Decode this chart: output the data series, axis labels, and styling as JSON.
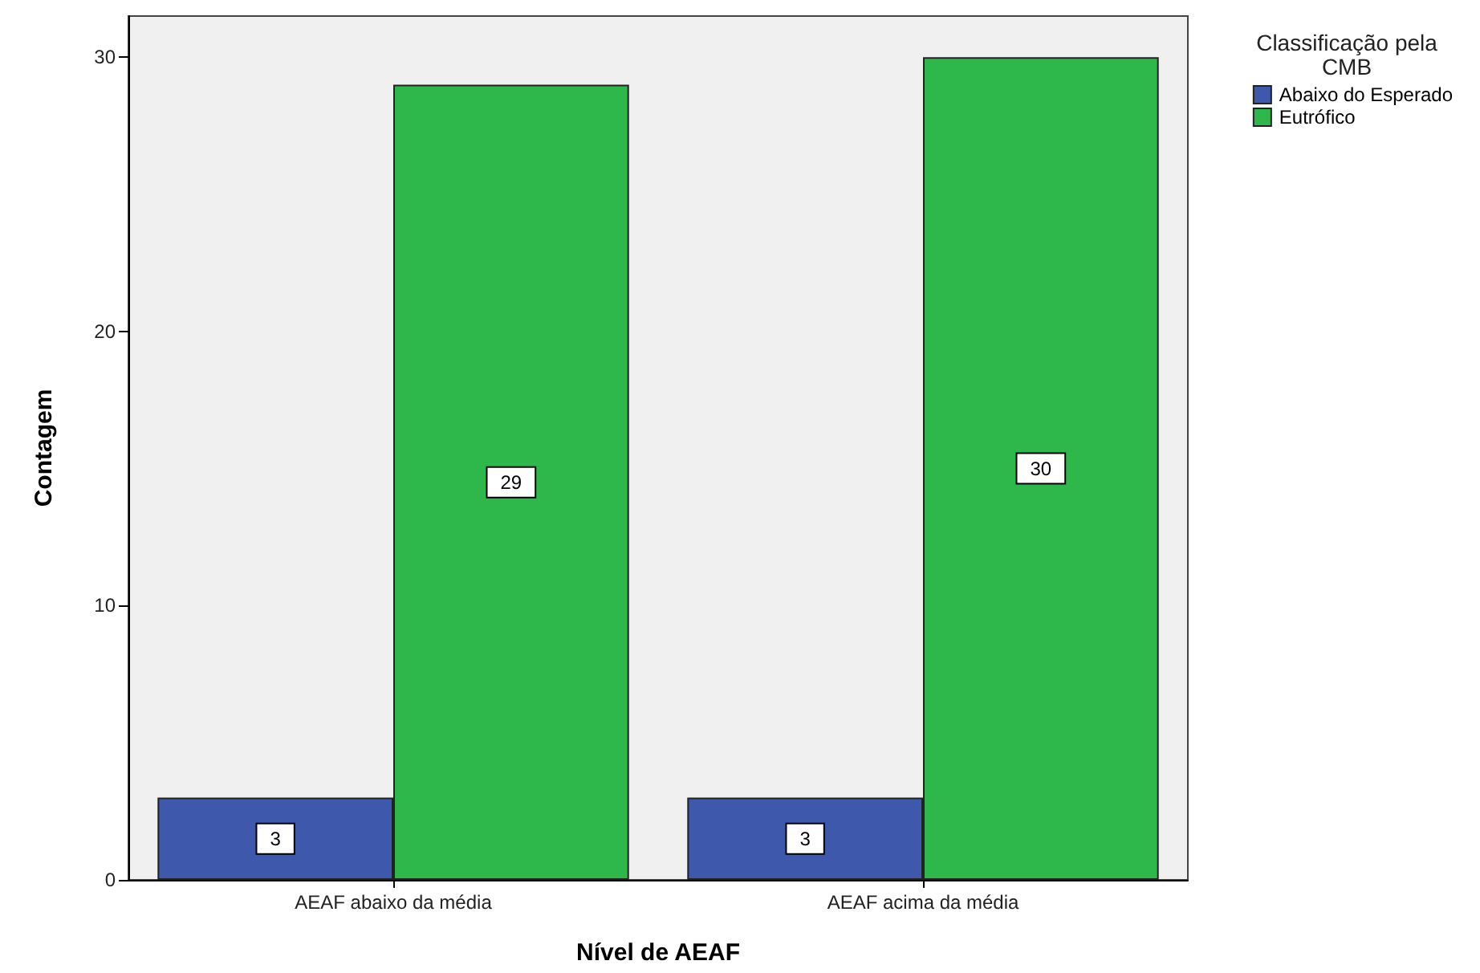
{
  "chart_data": {
    "type": "bar",
    "xlabel": "Nível de AEAF",
    "ylabel": "Contagem",
    "legend_title": "Classificação pela\nCMB",
    "legend": "top right",
    "categories": [
      "AEAF abaixo da média",
      "AEAF acima da média"
    ],
    "series": [
      {
        "name": "Abaixo do Esperado",
        "color": "#3e58ac",
        "values": [
          3,
          3
        ]
      },
      {
        "name": "Eutrófico",
        "color": "#2eb84b",
        "values": [
          29,
          30
        ]
      }
    ],
    "ylim": [
      0,
      31.5
    ],
    "yticks": [
      0,
      10,
      20,
      30
    ],
    "grid": false,
    "data_labels": true
  }
}
